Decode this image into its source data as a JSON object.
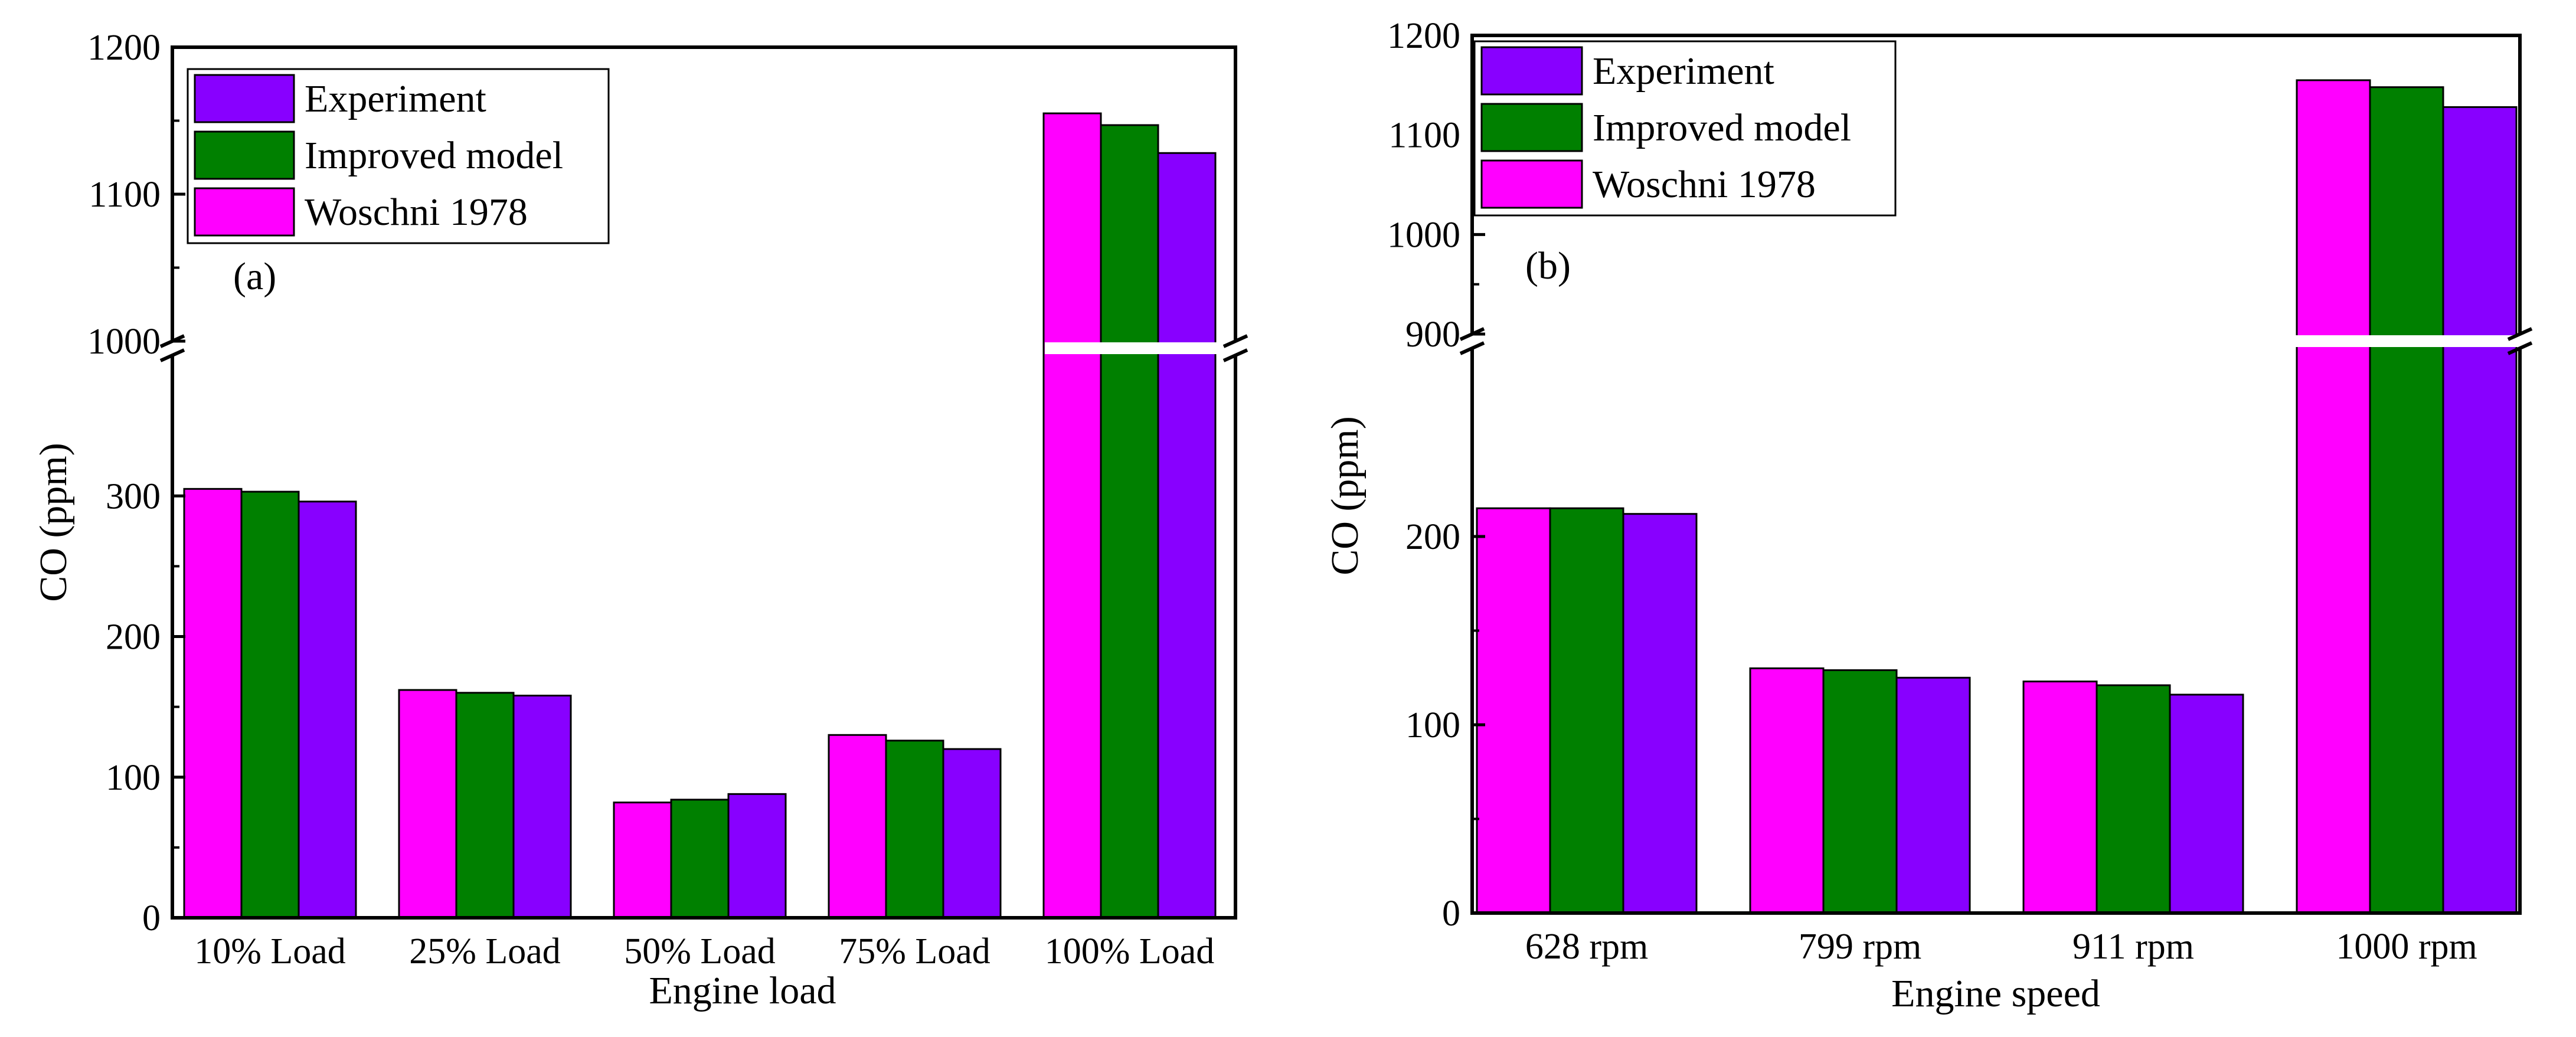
{
  "colors": {
    "woschni": "#ff00ff",
    "improved": "#008000",
    "experiment": "#8800ff",
    "axis": "#000000",
    "background": "#ffffff"
  },
  "legend_order": [
    "experiment",
    "improved",
    "woschni"
  ],
  "chart_data": [
    {
      "id": "a",
      "type": "bar",
      "panel_label": "(a)",
      "xlabel": "Engine load",
      "ylabel": "CO (ppm)",
      "categories": [
        "10% Load",
        "25% Load",
        "50% Load",
        "75% Load",
        "100% Load"
      ],
      "series": [
        {
          "key": "woschni",
          "name": "Woschni 1978",
          "values": [
            305,
            162,
            82,
            130,
            1155
          ]
        },
        {
          "key": "improved",
          "name": "Improved model",
          "values": [
            303,
            160,
            84,
            126,
            1147
          ]
        },
        {
          "key": "experiment",
          "name": "Experiment",
          "values": [
            296,
            158,
            88,
            120,
            1128
          ]
        }
      ],
      "axis_break": {
        "lower_ylim": [
          0,
          400
        ],
        "upper_ylim": [
          1000,
          1200
        ]
      },
      "lower_ticks": [
        0,
        100,
        200,
        300
      ],
      "upper_ticks": [
        1000,
        1100,
        1200
      ],
      "legend_position": "top-left"
    },
    {
      "id": "b",
      "type": "bar",
      "panel_label": "(b)",
      "xlabel": "Engine speed",
      "ylabel": "CO (ppm)",
      "categories": [
        "628 rpm",
        "799 rpm",
        "911 rpm",
        "1000 rpm"
      ],
      "series": [
        {
          "key": "woschni",
          "name": "Woschni 1978",
          "values": [
            215,
            130,
            123,
            1155
          ]
        },
        {
          "key": "improved",
          "name": "Improved model",
          "values": [
            215,
            129,
            121,
            1148
          ]
        },
        {
          "key": "experiment",
          "name": "Experiment",
          "values": [
            212,
            125,
            116,
            1128
          ]
        }
      ],
      "axis_break": {
        "lower_ylim": [
          0,
          300
        ],
        "upper_ylim": [
          900,
          1200
        ]
      },
      "lower_ticks": [
        0,
        100,
        200
      ],
      "upper_ticks": [
        900,
        1000,
        1100,
        1200
      ],
      "legend_position": "top-left"
    }
  ]
}
